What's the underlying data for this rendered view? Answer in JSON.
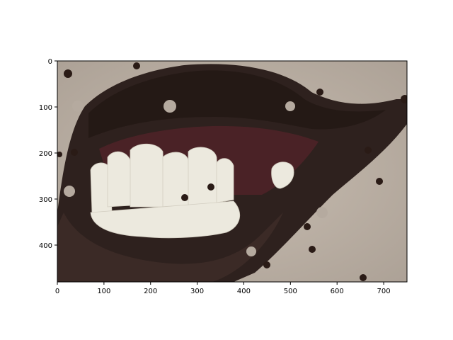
{
  "chart_data": {
    "type": "image",
    "title": "",
    "xlabel": "",
    "ylabel": "",
    "xlim": [
      0,
      750
    ],
    "ylim": [
      480,
      0
    ],
    "x_ticks": [
      0,
      100,
      200,
      300,
      400,
      500,
      600,
      700
    ],
    "y_ticks": [
      0,
      100,
      200,
      300,
      400
    ],
    "x_tick_labels": [
      "0",
      "100",
      "200",
      "300",
      "400",
      "500",
      "600",
      "700"
    ],
    "y_tick_labels": [
      "0",
      "100",
      "200",
      "300",
      "400"
    ],
    "image_content": "close-up-mouth-teeth-photo",
    "colors": {
      "skin": "#b9aea3",
      "lips": "#2e211e",
      "gum": "#4a2226",
      "teeth": "#ece9de",
      "mask": "#2a1b16"
    }
  }
}
